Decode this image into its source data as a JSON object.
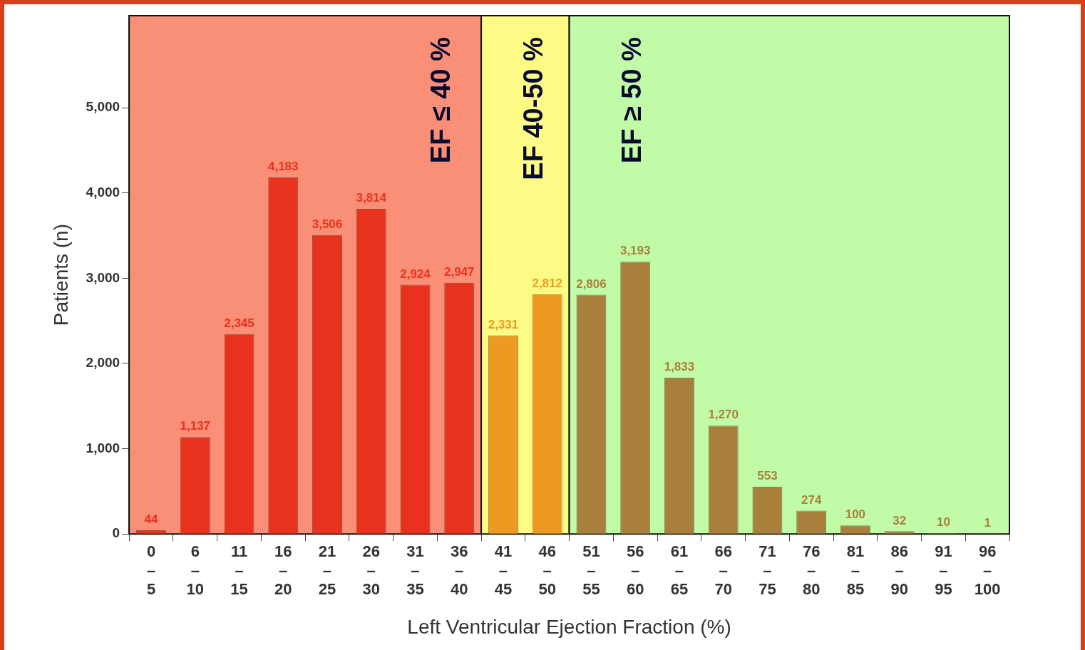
{
  "chart_data": {
    "type": "bar",
    "xlabel": "Left Ventricular Ejection Fraction (%)",
    "ylabel": "Patients (n)",
    "categories": [
      "0\n–\n5",
      "6\n–\n10",
      "11\n–\n15",
      "16\n–\n20",
      "21\n–\n25",
      "26\n–\n30",
      "31\n–\n35",
      "36\n–\n40",
      "41\n–\n45",
      "46\n–\n50",
      "51\n–\n55",
      "56\n–\n60",
      "61\n–\n65",
      "66\n–\n70",
      "71\n–\n75",
      "76\n–\n80",
      "81\n–\n85",
      "86\n–\n90",
      "91\n–\n95",
      "96\n–\n100"
    ],
    "values": [
      44,
      1137,
      2345,
      4183,
      3506,
      3814,
      2924,
      2947,
      2331,
      2812,
      2806,
      3193,
      1833,
      1270,
      553,
      274,
      100,
      32,
      10,
      1
    ],
    "colors": [
      "#e8321e",
      "#e8321e",
      "#e8321e",
      "#e8321e",
      "#e8321e",
      "#e8321e",
      "#e8321e",
      "#e8321e",
      "#ee9a22",
      "#ee9a22",
      "#a8803c",
      "#a8803c",
      "#a8803c",
      "#a8803c",
      "#a8803c",
      "#a8803c",
      "#a8803c",
      "#a8803c",
      "#a8803c",
      "#a8803c"
    ],
    "ylim": [
      0,
      6080
    ],
    "yticks": [
      {
        "value": 0,
        "label": "0"
      },
      {
        "value": 1000,
        "label": "1,000"
      },
      {
        "value": 2000,
        "label": "2,000"
      },
      {
        "value": 3000,
        "label": "3,000"
      },
      {
        "value": 4000,
        "label": "4,000"
      },
      {
        "value": 5000,
        "label": "5,000"
      }
    ],
    "bands": [
      {
        "axis": "x",
        "from": "0\n–\n5",
        "to": "36\n–\n40",
        "label": "EF ≤ 40 %",
        "color": "#f98f76"
      },
      {
        "axis": "x",
        "from": "41\n–\n45",
        "to": "46\n–\n50",
        "label": "EF 40-50 %",
        "color": "#fdfb86"
      },
      {
        "axis": "x",
        "from": "51\n–\n55",
        "to": "96\n–\n100",
        "label": "EF ≥ 50 %",
        "color": "#c2fba8"
      }
    ],
    "value_labels": [
      "44",
      "1,137",
      "2,345",
      "4,183",
      "3,506",
      "3,814",
      "2,924",
      "2,947",
      "2,331",
      "2,812",
      "2,806",
      "3,193",
      "1,833",
      "1,270",
      "553",
      "274",
      "100",
      "32",
      "10",
      "1"
    ],
    "legend": false
  }
}
